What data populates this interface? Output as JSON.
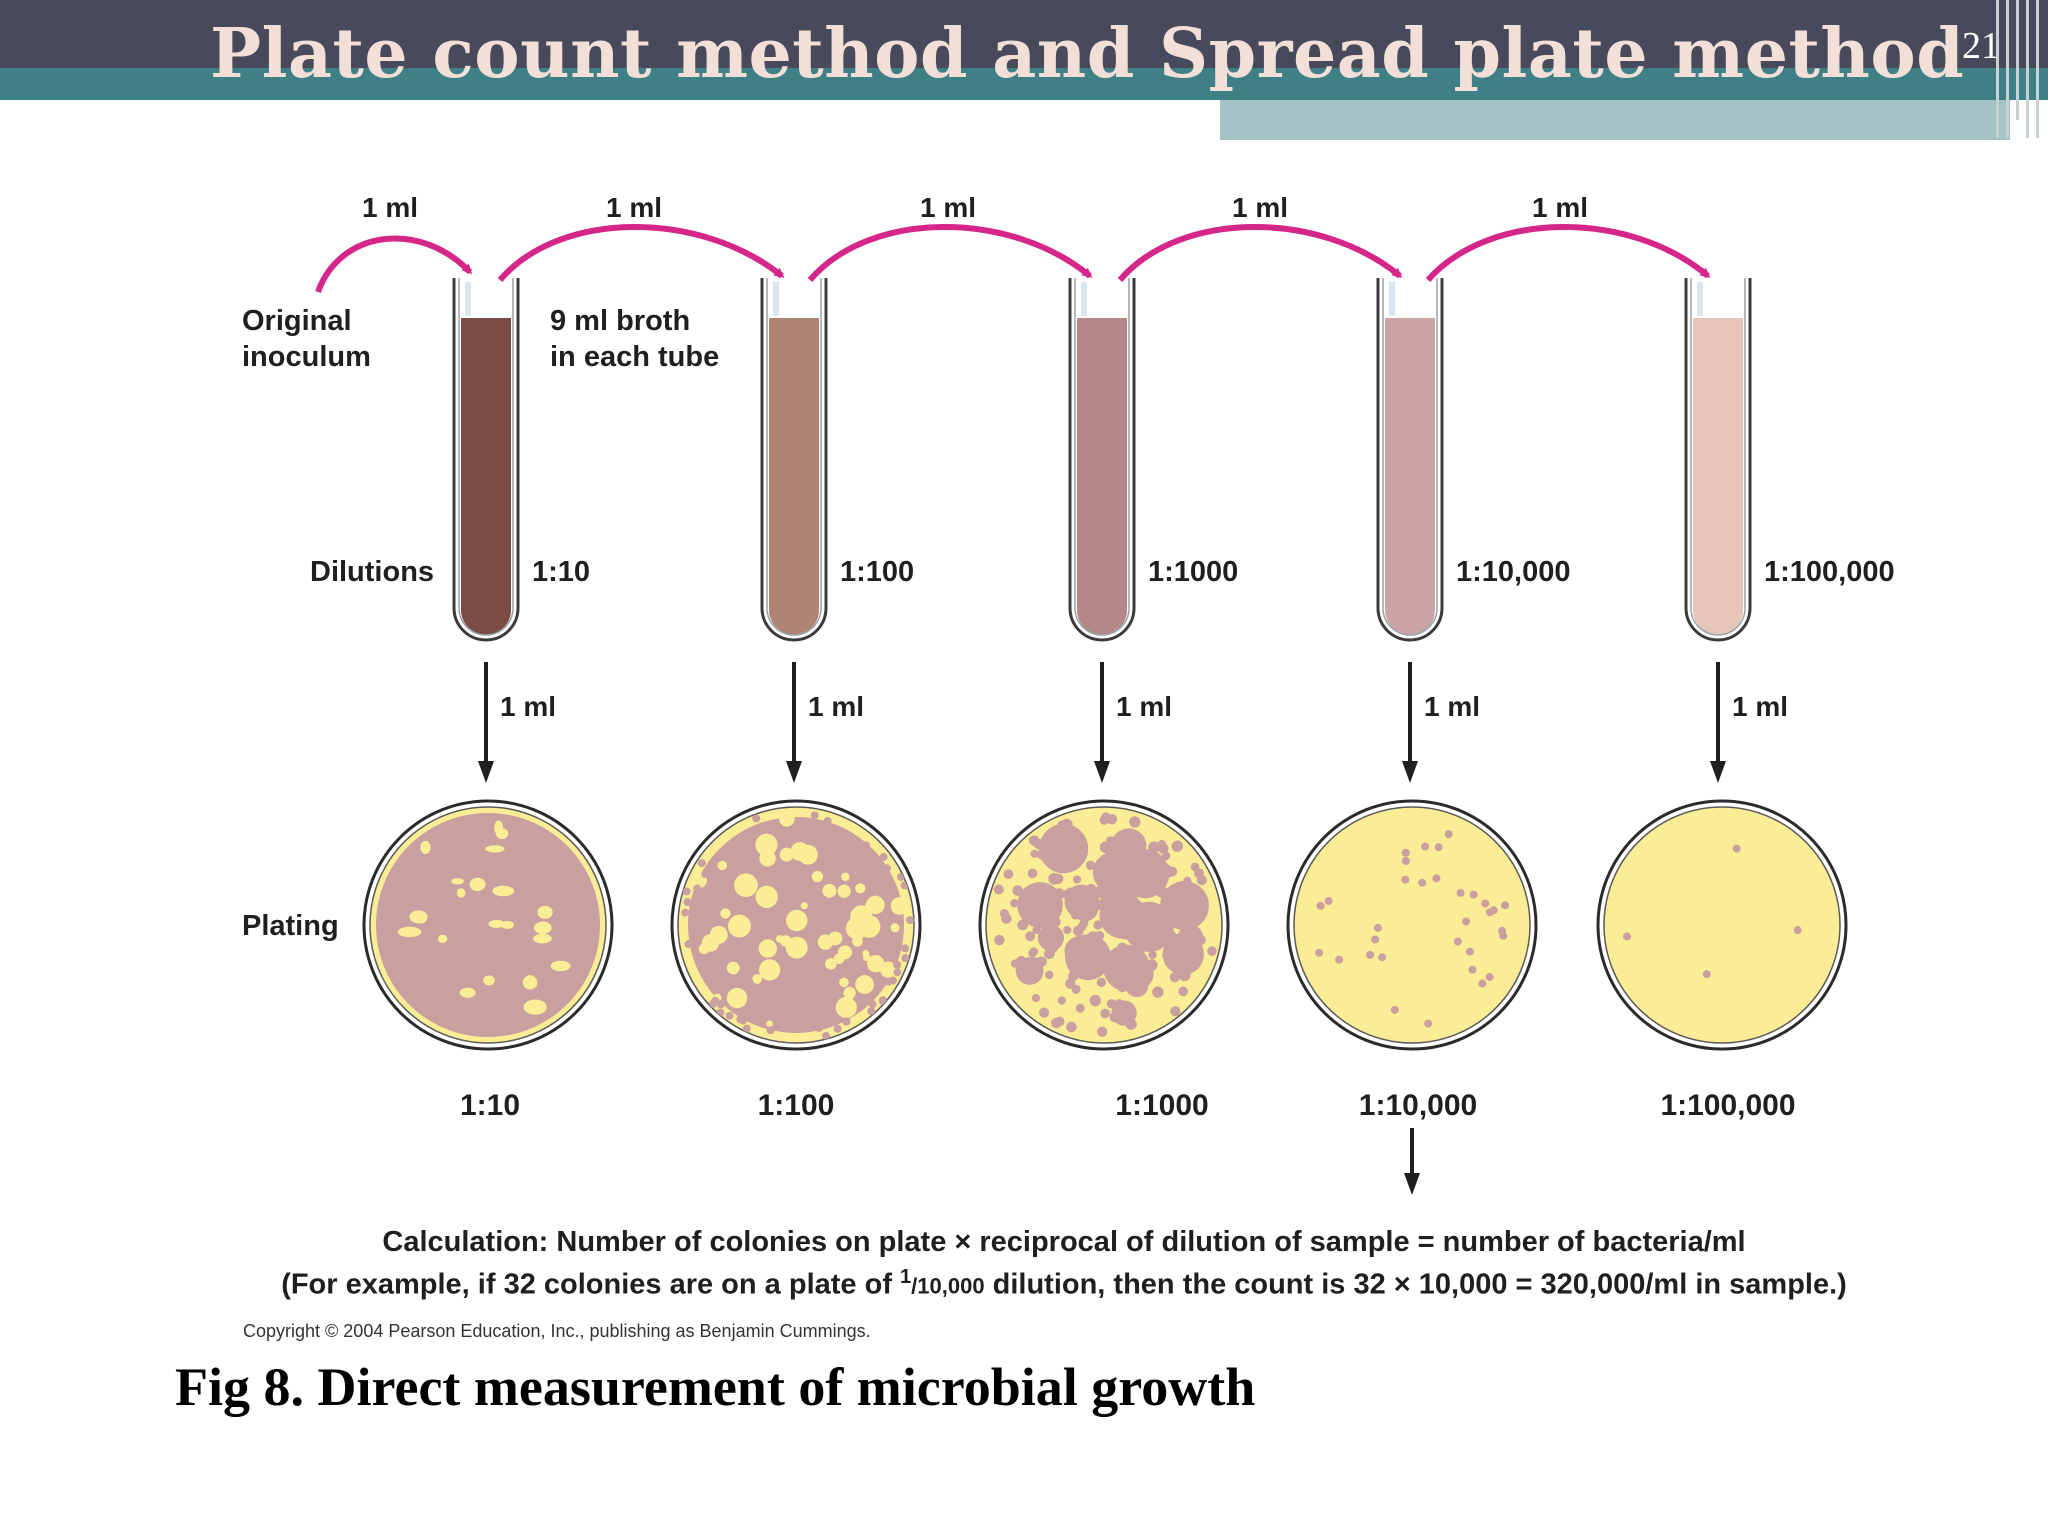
{
  "slide": {
    "title": "Plate count method and Spread plate method",
    "number": "21"
  },
  "colors": {
    "header_dark": "#484a5c",
    "header_teal": "#3f7f86",
    "header_light": "#a4c3c6",
    "title_text": "#f2dfd7",
    "arrow_magenta": "#d5268a",
    "agar_yellow": "#fbec96",
    "colony_mauve": "#c9a0a0"
  },
  "diagram": {
    "transfer_label": "1 ml",
    "original_inoculum": [
      "Original",
      "inoculum"
    ],
    "broth_note": [
      "9 ml broth",
      "in each tube"
    ],
    "dilutions_label": "Dilutions",
    "plating_label": "Plating",
    "tubes": [
      {
        "dilution": "1:10",
        "liquid_color": "#7a4c44"
      },
      {
        "dilution": "1:100",
        "liquid_color": "#b08472"
      },
      {
        "dilution": "1:1000",
        "liquid_color": "#b48888"
      },
      {
        "dilution": "1:10,000",
        "liquid_color": "#cba4a6"
      },
      {
        "dilution": "1:100,000",
        "liquid_color": "#e6c6b8"
      }
    ],
    "plates": [
      {
        "dilution": "1:10",
        "coverage": "confluent"
      },
      {
        "dilution": "1:100",
        "coverage": "heavy"
      },
      {
        "dilution": "1:1000",
        "coverage": "many colonies"
      },
      {
        "dilution": "1:10,000",
        "colony_count": 32
      },
      {
        "dilution": "1:100,000",
        "colony_count": 4
      }
    ]
  },
  "calculation": {
    "line1": "Calculation: Number of colonies on plate × reciprocal of dilution of sample = number of bacteria/ml",
    "line2_prefix": "(For example, if 32 colonies are on a plate of ",
    "line2_sup": "1",
    "line2_sub": "/10,000",
    "line2_suffix": " dilution, then the count is 32 × 10,000 = 320,000/ml in sample.)"
  },
  "copyright": "Copyright © 2004 Pearson Education, Inc., publishing as Benjamin Cummings.",
  "caption": "Fig 8. Direct measurement of microbial growth"
}
